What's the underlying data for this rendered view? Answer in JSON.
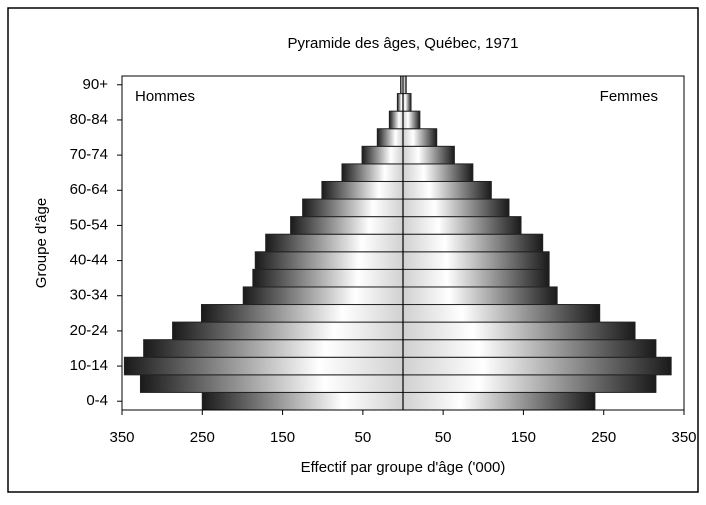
{
  "chart_data": {
    "type": "pyramid",
    "title": "Pyramide des âges, Québec, 1971",
    "xlabel": "Effectif par groupe d'âge ('000)",
    "ylabel": "Groupe d'âge",
    "categories": [
      "0-4",
      null,
      "10-14",
      null,
      "20-24",
      null,
      "30-34",
      null,
      "40-44",
      null,
      "50-54",
      null,
      "60-64",
      null,
      "70-74",
      null,
      "80-84",
      null,
      "90+"
    ],
    "series": [
      {
        "name": "Hommes",
        "color": "#222222",
        "values": [
          250,
          327,
          347,
          323,
          287,
          251,
          199,
          187,
          184,
          171,
          140,
          125,
          101,
          76,
          51,
          32,
          17,
          7,
          3
        ]
      },
      {
        "name": "Femmes",
        "color": "#222222",
        "values": [
          239,
          315,
          334,
          315,
          289,
          245,
          192,
          182,
          182,
          174,
          147,
          132,
          110,
          87,
          64,
          42,
          21,
          10,
          4
        ]
      }
    ],
    "xlim": [
      -350,
      350
    ],
    "xticks": [
      {
        "value": -350,
        "label": "350"
      },
      {
        "value": -250,
        "label": "250"
      },
      {
        "value": -150,
        "label": "150"
      },
      {
        "value": -50,
        "label": "50"
      },
      50,
      150,
      250,
      350
    ]
  }
}
